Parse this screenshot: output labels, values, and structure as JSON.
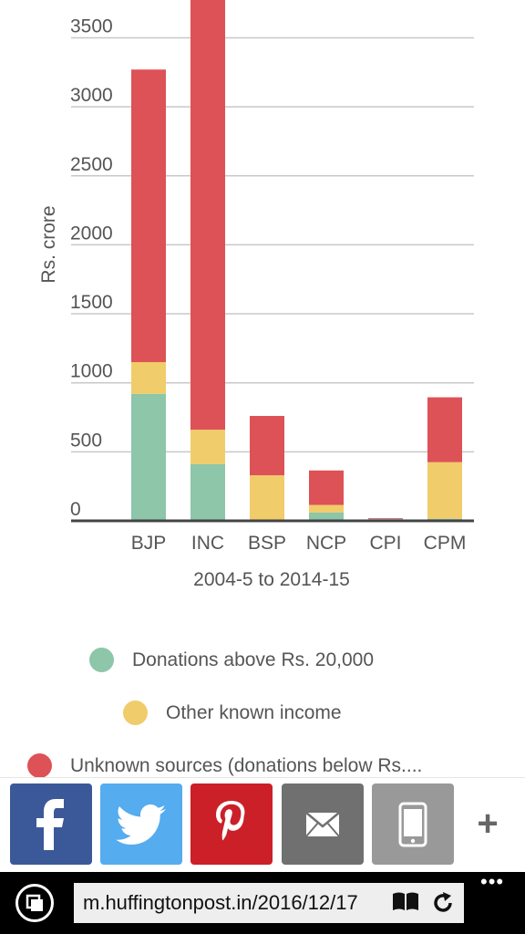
{
  "chart_data": {
    "type": "bar",
    "stacked": true,
    "categories": [
      "BJP",
      "INC",
      "BSP",
      "NCP",
      "CPI",
      "CPM"
    ],
    "series": [
      {
        "name": "Donations above Rs. 20,000",
        "color": "#8dc6a9",
        "values": [
          920,
          410,
          0,
          60,
          15,
          15
        ]
      },
      {
        "name": "Other known income",
        "color": "#f0cc6a",
        "values": [
          230,
          250,
          330,
          55,
          0,
          410
        ]
      },
      {
        "name": "Unknown sources (donations below Rs....",
        "color": "#dd5257",
        "values": [
          2120,
          3180,
          430,
          250,
          5,
          470
        ]
      }
    ],
    "ylabel": "Rs. crore",
    "xlabel": "2004-5 to 2014-15",
    "yticks": [
      "0",
      "500",
      "1000",
      "1500",
      "2000",
      "2500",
      "3000",
      "3500"
    ],
    "ylim": [
      0,
      3800
    ],
    "grid": true,
    "legend_position": "bottom"
  },
  "share_bar": {
    "buttons": [
      {
        "name": "facebook",
        "color": "#3b5998"
      },
      {
        "name": "twitter",
        "color": "#55acee"
      },
      {
        "name": "pinterest",
        "color": "#cb2027"
      },
      {
        "name": "email",
        "color": "#707070"
      },
      {
        "name": "sms",
        "color": "#999999"
      }
    ],
    "more_label": "+"
  },
  "browser": {
    "url": "m.huffingtonpost.in/2016/12/17",
    "more_label": "•••"
  }
}
